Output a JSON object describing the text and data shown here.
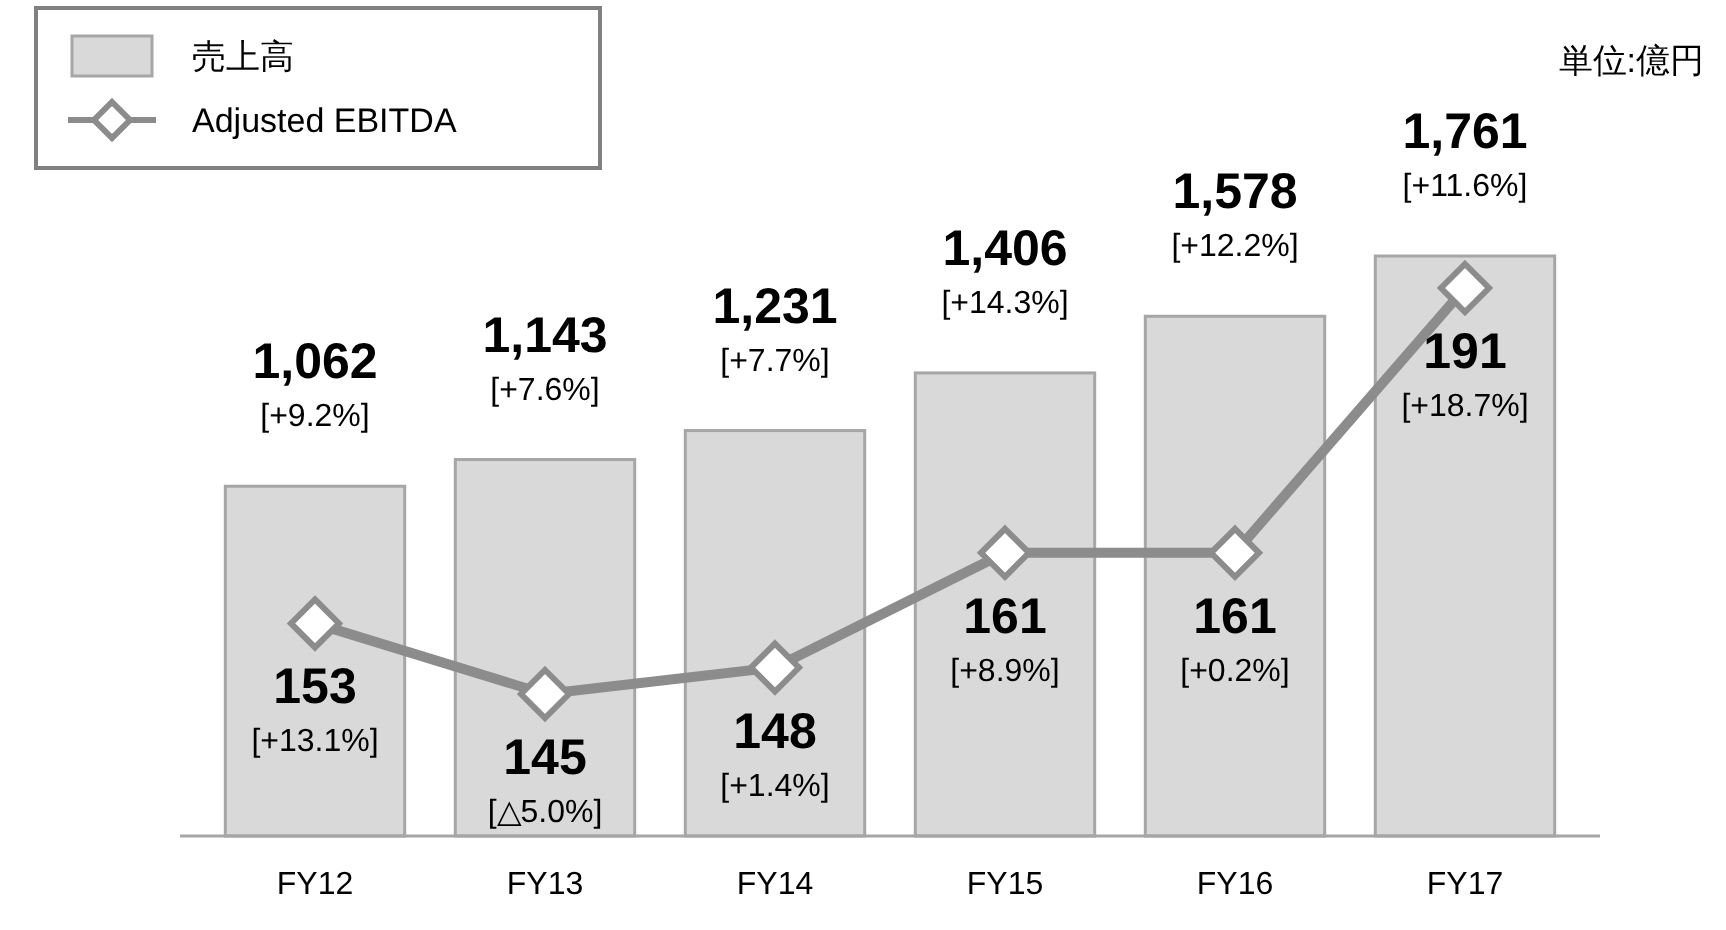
{
  "chart_data": {
    "type": "bar",
    "categories": [
      "FY12",
      "FY13",
      "FY14",
      "FY15",
      "FY16",
      "FY17"
    ],
    "series": [
      {
        "name": "売上高",
        "color": "#d9d9d9",
        "values": [
          1062,
          1143,
          1231,
          1406,
          1578,
          1761
        ],
        "value_labels": [
          "1,062\n[+9.2%]",
          "1,143\n[+7.6%]",
          "1,231\n[+7.7%]",
          "1,406\n[+14.3%]",
          "1,578\n[+12.2%]",
          "1,761\n[+11.6%]"
        ]
      },
      {
        "name": "Adjusted EBITDA",
        "type": "line",
        "axis": "y2",
        "color": "#8c8c8c",
        "marker": "diamond",
        "values": [
          153,
          145,
          148,
          161,
          161,
          191
        ],
        "value_labels": [
          "153\n[+13.1%]",
          "145\n[△5.0%]",
          "148\n[+1.4%]",
          "161\n[+8.9%]",
          "161\n[+0.2%]",
          "191\n[+18.7%]"
        ]
      }
    ],
    "tick_labels": "x",
    "legend": "top left",
    "annotations": [
      "単位:億円"
    ]
  }
}
